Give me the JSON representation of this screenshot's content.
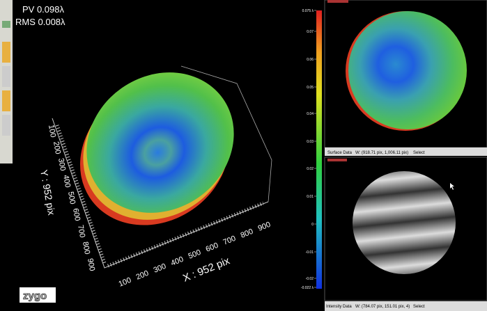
{
  "metrics": {
    "pv": "PV 0.098λ",
    "rms": "RMS 0.008λ"
  },
  "plot3d": {
    "x_label": "X : 952 pix",
    "y_label": "Y : 952 pix",
    "x_ticks": [
      "100",
      "200",
      "300",
      "400",
      "500",
      "600",
      "700",
      "800",
      "900"
    ],
    "y_ticks": [
      "100",
      "200",
      "300",
      "400",
      "500",
      "600",
      "700",
      "800",
      "900"
    ]
  },
  "colorbar": {
    "ticks": [
      "0.075 λ",
      "0.07",
      "0.06",
      "0.05",
      "0.04",
      "0.03",
      "0.02",
      "0.01",
      "0",
      "-0.01",
      "-0.02",
      "-0.022 λ"
    ]
  },
  "logo": "zygo",
  "surface_panel": {
    "status": "Surface Data",
    "coords": "W: (918.71 pix, 1,006.11 pix)",
    "select": "Select"
  },
  "intensity_panel": {
    "status": "Intensity Data",
    "coords": "W: (784.07 pix, 151.01 pix, 4)",
    "select": "Select"
  }
}
